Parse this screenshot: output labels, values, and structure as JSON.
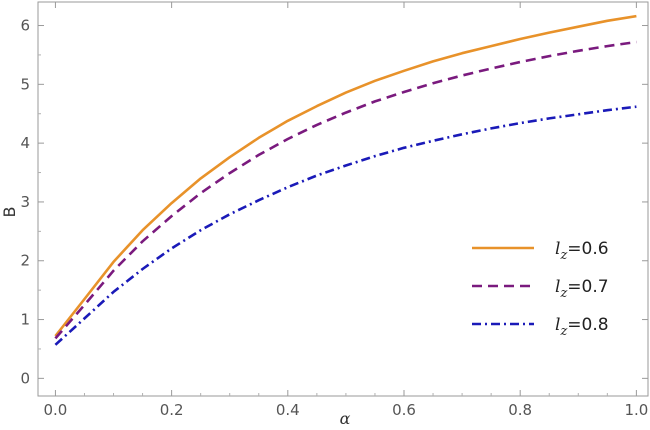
{
  "chart_data": {
    "type": "line",
    "xlabel": "α",
    "ylabel": "B",
    "xlim": [
      -0.03,
      1.02
    ],
    "ylim": [
      -0.3,
      6.4
    ],
    "xticks": [
      "0.0",
      "0.2",
      "0.4",
      "0.6",
      "0.8",
      "1.0"
    ],
    "yticks": [
      "0",
      "1",
      "2",
      "3",
      "4",
      "5",
      "6"
    ],
    "legend_position": "bottom-right",
    "x": [
      0.0,
      0.05,
      0.1,
      0.15,
      0.2,
      0.25,
      0.3,
      0.35,
      0.4,
      0.45,
      0.5,
      0.55,
      0.6,
      0.65,
      0.7,
      0.75,
      0.8,
      0.85,
      0.9,
      0.95,
      1.0
    ],
    "series": [
      {
        "name_var": "l",
        "name_sub": "z",
        "name_value": "=0.6",
        "color": "#e8922a",
        "dash": "",
        "values": [
          0.72,
          1.35,
          1.98,
          2.52,
          2.98,
          3.4,
          3.76,
          4.09,
          4.38,
          4.63,
          4.86,
          5.06,
          5.23,
          5.39,
          5.53,
          5.65,
          5.77,
          5.88,
          5.98,
          6.08,
          6.16
        ]
      },
      {
        "name_var": "l",
        "name_sub": "z",
        "name_value": "=0.7",
        "color": "#7a1a7e",
        "dash": "10,6",
        "values": [
          0.68,
          1.25,
          1.83,
          2.33,
          2.76,
          3.15,
          3.49,
          3.8,
          4.07,
          4.31,
          4.52,
          4.71,
          4.87,
          5.02,
          5.15,
          5.27,
          5.38,
          5.48,
          5.57,
          5.65,
          5.72
        ]
      },
      {
        "name_var": "l",
        "name_sub": "z",
        "name_value": "=0.8",
        "color": "#1a1ab8",
        "dash": "9,4,2,4",
        "values": [
          0.57,
          1.02,
          1.47,
          1.86,
          2.21,
          2.52,
          2.79,
          3.03,
          3.25,
          3.45,
          3.62,
          3.78,
          3.92,
          4.04,
          4.15,
          4.25,
          4.34,
          4.42,
          4.49,
          4.56,
          4.62
        ]
      }
    ]
  }
}
